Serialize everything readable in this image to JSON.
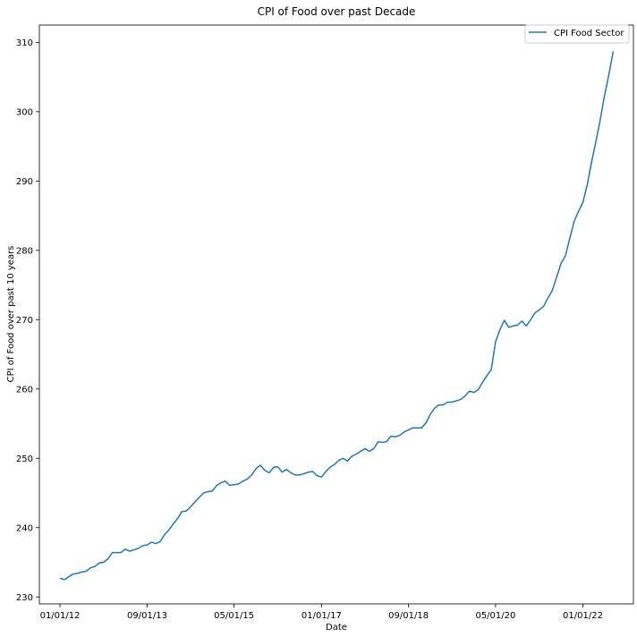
{
  "chart_data": {
    "type": "line",
    "title": "CPI of Food over past Decade",
    "xlabel": "Date",
    "ylabel": "CPI of Food over past 10 years",
    "xlim": [
      "2011-08-10",
      "2022-12-20"
    ],
    "ylim": [
      229,
      312.5
    ],
    "x_ticks": [
      {
        "date": "2012-01-01",
        "label": "01/01/12"
      },
      {
        "date": "2013-09-01",
        "label": "09/01/13"
      },
      {
        "date": "2015-05-01",
        "label": "05/01/15"
      },
      {
        "date": "2017-01-01",
        "label": "01/01/17"
      },
      {
        "date": "2018-09-01",
        "label": "09/01/18"
      },
      {
        "date": "2020-05-01",
        "label": "05/01/20"
      },
      {
        "date": "2022-01-01",
        "label": "01/01/22"
      }
    ],
    "y_ticks": [
      230,
      240,
      250,
      260,
      270,
      280,
      290,
      300,
      310
    ],
    "grid": false,
    "legend": {
      "placement": "top-right"
    },
    "series": [
      {
        "name": "CPI Food Sector",
        "color": "#1f77b4",
        "x": [
          "2012-01-01",
          "2012-02-01",
          "2012-03-01",
          "2012-04-01",
          "2012-05-01",
          "2012-06-01",
          "2012-07-01",
          "2012-08-01",
          "2012-09-01",
          "2012-10-01",
          "2012-11-01",
          "2012-12-01",
          "2013-01-01",
          "2013-02-01",
          "2013-03-01",
          "2013-04-01",
          "2013-05-01",
          "2013-06-01",
          "2013-07-01",
          "2013-08-01",
          "2013-09-01",
          "2013-10-01",
          "2013-11-01",
          "2013-12-01",
          "2014-01-01",
          "2014-02-01",
          "2014-03-01",
          "2014-04-01",
          "2014-05-01",
          "2014-06-01",
          "2014-07-01",
          "2014-08-01",
          "2014-09-01",
          "2014-10-01",
          "2014-11-01",
          "2014-12-01",
          "2015-01-01",
          "2015-02-01",
          "2015-03-01",
          "2015-04-01",
          "2015-05-01",
          "2015-06-01",
          "2015-07-01",
          "2015-08-01",
          "2015-09-01",
          "2015-10-01",
          "2015-11-01",
          "2015-12-01",
          "2016-01-01",
          "2016-02-01",
          "2016-03-01",
          "2016-04-01",
          "2016-05-01",
          "2016-06-01",
          "2016-07-01",
          "2016-08-01",
          "2016-09-01",
          "2016-10-01",
          "2016-11-01",
          "2016-12-01",
          "2017-01-01",
          "2017-02-01",
          "2017-03-01",
          "2017-04-01",
          "2017-05-01",
          "2017-06-01",
          "2017-07-01",
          "2017-08-01",
          "2017-09-01",
          "2017-10-01",
          "2017-11-01",
          "2017-12-01",
          "2018-01-01",
          "2018-02-01",
          "2018-03-01",
          "2018-04-01",
          "2018-05-01",
          "2018-06-01",
          "2018-07-01",
          "2018-08-01",
          "2018-09-01",
          "2018-10-01",
          "2018-11-01",
          "2018-12-01",
          "2019-01-01",
          "2019-02-01",
          "2019-03-01",
          "2019-04-01",
          "2019-05-01",
          "2019-06-01",
          "2019-07-01",
          "2019-08-01",
          "2019-09-01",
          "2019-10-01",
          "2019-11-01",
          "2019-12-01",
          "2020-01-01",
          "2020-02-01",
          "2020-03-01",
          "2020-04-01",
          "2020-05-01",
          "2020-06-01",
          "2020-07-01",
          "2020-08-01",
          "2020-09-01",
          "2020-10-01",
          "2020-11-01",
          "2020-12-01",
          "2021-01-01",
          "2021-02-01",
          "2021-03-01",
          "2021-04-01",
          "2021-05-01",
          "2021-06-01",
          "2021-07-01",
          "2021-08-01",
          "2021-09-01",
          "2021-10-01",
          "2021-11-01",
          "2021-12-01",
          "2022-01-01",
          "2022-02-01",
          "2022-03-01",
          "2022-04-01",
          "2022-05-01",
          "2022-06-01",
          "2022-07-01",
          "2022-08-01"
        ],
        "values": [
          232.7,
          232.5,
          232.9,
          233.3,
          233.4,
          233.6,
          233.7,
          234.2,
          234.4,
          234.9,
          235.0,
          235.5,
          236.4,
          236.4,
          236.4,
          236.9,
          236.6,
          236.8,
          237.0,
          237.4,
          237.5,
          237.9,
          237.7,
          238.0,
          239.0,
          239.7,
          240.5,
          241.3,
          242.3,
          242.4,
          243.0,
          243.7,
          244.4,
          245.0,
          245.2,
          245.3,
          246.1,
          246.5,
          246.7,
          246.1,
          246.2,
          246.3,
          246.7,
          247.0,
          247.6,
          248.5,
          249.0,
          248.3,
          247.9,
          248.7,
          248.8,
          248.0,
          248.4,
          247.9,
          247.6,
          247.6,
          247.8,
          248.0,
          248.1,
          247.5,
          247.3,
          248.1,
          248.7,
          249.1,
          249.7,
          250.0,
          249.6,
          250.3,
          250.6,
          251.0,
          251.4,
          251.0,
          251.4,
          252.4,
          252.3,
          252.4,
          253.2,
          253.1,
          253.3,
          253.8,
          254.1,
          254.4,
          254.4,
          254.4,
          255.1,
          256.4,
          257.2,
          257.7,
          257.7,
          258.1,
          258.1,
          258.3,
          258.5,
          259.0,
          259.7,
          259.5,
          259.9,
          261.0,
          261.9,
          262.8,
          266.8,
          268.6,
          269.9,
          268.9,
          269.1,
          269.2,
          269.8,
          269.1,
          270.0,
          271.0,
          271.4,
          271.9,
          273.1,
          274.2,
          276.1,
          278.1,
          279.2,
          281.7,
          284.2,
          285.6,
          286.9,
          289.5,
          292.6,
          295.6,
          298.7,
          302.3,
          305.3,
          308.7
        ]
      }
    ]
  }
}
